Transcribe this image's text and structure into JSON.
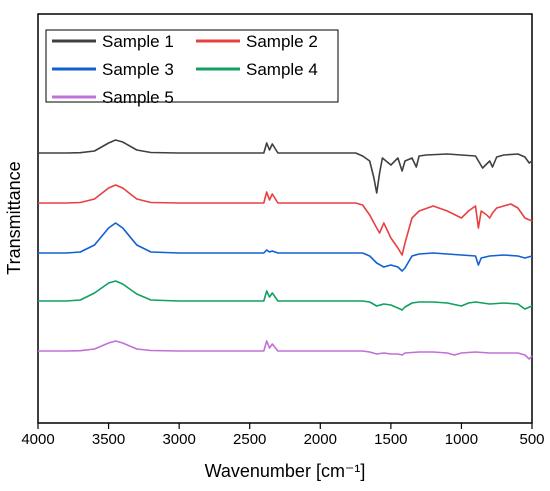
{
  "chart_data": {
    "type": "line",
    "title": "",
    "xlabel": "Wavenumber [cm⁻¹]",
    "ylabel": "Transmittance",
    "xlim": [
      4000,
      500
    ],
    "x_reversed": true,
    "x_ticks": [
      4000,
      3500,
      3000,
      2500,
      2000,
      1500,
      1000,
      500
    ],
    "y_ticks_shown": false,
    "grid": false,
    "legend_position": "top-left",
    "legend_columns": 2,
    "series": [
      {
        "name": "Sample 1",
        "color": "#404040",
        "baseline": 0,
        "points": [
          [
            4000,
            0
          ],
          [
            3800,
            0
          ],
          [
            3700,
            0.3
          ],
          [
            3600,
            2
          ],
          [
            3500,
            10
          ],
          [
            3450,
            13
          ],
          [
            3400,
            11
          ],
          [
            3300,
            3
          ],
          [
            3200,
            0.5
          ],
          [
            3000,
            0
          ],
          [
            2400,
            0
          ],
          [
            2380,
            10
          ],
          [
            2360,
            3
          ],
          [
            2340,
            9
          ],
          [
            2300,
            0
          ],
          [
            1750,
            0
          ],
          [
            1700,
            -3
          ],
          [
            1650,
            -8
          ],
          [
            1620,
            -25
          ],
          [
            1600,
            -40
          ],
          [
            1580,
            -20
          ],
          [
            1560,
            -5
          ],
          [
            1500,
            -12
          ],
          [
            1450,
            -5
          ],
          [
            1420,
            -18
          ],
          [
            1400,
            -8
          ],
          [
            1350,
            -5
          ],
          [
            1320,
            -14
          ],
          [
            1300,
            -3
          ],
          [
            1250,
            -2
          ],
          [
            1100,
            -1
          ],
          [
            1000,
            -2
          ],
          [
            900,
            -3
          ],
          [
            850,
            -15
          ],
          [
            800,
            -8
          ],
          [
            780,
            -14
          ],
          [
            750,
            -4
          ],
          [
            700,
            -2
          ],
          [
            600,
            -1
          ],
          [
            550,
            -4
          ],
          [
            520,
            -10
          ],
          [
            500,
            -8
          ]
        ]
      },
      {
        "name": "Sample 2",
        "color": "#e84040",
        "baseline": 0,
        "points": [
          [
            4000,
            0
          ],
          [
            3800,
            0
          ],
          [
            3700,
            0.5
          ],
          [
            3600,
            4
          ],
          [
            3500,
            15
          ],
          [
            3450,
            18
          ],
          [
            3400,
            15
          ],
          [
            3300,
            4
          ],
          [
            3200,
            0.5
          ],
          [
            3000,
            0
          ],
          [
            2400,
            0
          ],
          [
            2380,
            11
          ],
          [
            2360,
            3
          ],
          [
            2340,
            9
          ],
          [
            2300,
            0
          ],
          [
            1750,
            0
          ],
          [
            1700,
            -2
          ],
          [
            1650,
            -12
          ],
          [
            1600,
            -25
          ],
          [
            1580,
            -30
          ],
          [
            1550,
            -20
          ],
          [
            1500,
            -35
          ],
          [
            1450,
            -45
          ],
          [
            1420,
            -52
          ],
          [
            1400,
            -40
          ],
          [
            1350,
            -15
          ],
          [
            1300,
            -8
          ],
          [
            1200,
            -3
          ],
          [
            1100,
            -8
          ],
          [
            1000,
            -15
          ],
          [
            950,
            -8
          ],
          [
            900,
            -3
          ],
          [
            880,
            -25
          ],
          [
            860,
            -8
          ],
          [
            820,
            -12
          ],
          [
            800,
            -15
          ],
          [
            780,
            -10
          ],
          [
            750,
            -5
          ],
          [
            700,
            -3
          ],
          [
            650,
            -1
          ],
          [
            600,
            -5
          ],
          [
            550,
            -15
          ],
          [
            500,
            -18
          ]
        ]
      },
      {
        "name": "Sample 3",
        "color": "#1060d0",
        "baseline": 0,
        "points": [
          [
            4000,
            0
          ],
          [
            3800,
            0
          ],
          [
            3700,
            1
          ],
          [
            3600,
            8
          ],
          [
            3500,
            25
          ],
          [
            3450,
            30
          ],
          [
            3400,
            25
          ],
          [
            3300,
            8
          ],
          [
            3200,
            1
          ],
          [
            3000,
            0
          ],
          [
            2400,
            0
          ],
          [
            2380,
            3
          ],
          [
            2360,
            1
          ],
          [
            2340,
            2
          ],
          [
            2300,
            0
          ],
          [
            1700,
            0
          ],
          [
            1650,
            -3
          ],
          [
            1600,
            -10
          ],
          [
            1550,
            -14
          ],
          [
            1500,
            -12
          ],
          [
            1450,
            -14
          ],
          [
            1420,
            -18
          ],
          [
            1400,
            -15
          ],
          [
            1350,
            -3
          ],
          [
            1300,
            -1
          ],
          [
            1200,
            0
          ],
          [
            1100,
            -1
          ],
          [
            1000,
            -2
          ],
          [
            900,
            -3
          ],
          [
            880,
            -12
          ],
          [
            860,
            -5
          ],
          [
            800,
            -3
          ],
          [
            700,
            -2
          ],
          [
            600,
            -3
          ],
          [
            550,
            -5
          ],
          [
            500,
            -3
          ]
        ]
      },
      {
        "name": "Sample 4",
        "color": "#10a060",
        "baseline": 0,
        "points": [
          [
            4000,
            0
          ],
          [
            3800,
            0
          ],
          [
            3700,
            1
          ],
          [
            3600,
            8
          ],
          [
            3500,
            18
          ],
          [
            3450,
            20
          ],
          [
            3400,
            17
          ],
          [
            3300,
            7
          ],
          [
            3200,
            1
          ],
          [
            3000,
            0
          ],
          [
            2400,
            0
          ],
          [
            2380,
            10
          ],
          [
            2360,
            4
          ],
          [
            2340,
            8
          ],
          [
            2300,
            0
          ],
          [
            1700,
            0
          ],
          [
            1650,
            -1
          ],
          [
            1600,
            -5
          ],
          [
            1550,
            -3
          ],
          [
            1500,
            -4
          ],
          [
            1450,
            -7
          ],
          [
            1420,
            -9
          ],
          [
            1400,
            -6
          ],
          [
            1350,
            -2
          ],
          [
            1300,
            -1
          ],
          [
            1200,
            -1
          ],
          [
            1100,
            -2
          ],
          [
            1000,
            -5
          ],
          [
            950,
            -2
          ],
          [
            900,
            -1
          ],
          [
            850,
            -2
          ],
          [
            800,
            -3
          ],
          [
            700,
            -2
          ],
          [
            600,
            -3
          ],
          [
            550,
            -8
          ],
          [
            500,
            -5
          ]
        ]
      },
      {
        "name": "Sample 5",
        "color": "#c070d8",
        "baseline": 0,
        "points": [
          [
            4000,
            0
          ],
          [
            3800,
            0
          ],
          [
            3700,
            0.3
          ],
          [
            3600,
            2
          ],
          [
            3500,
            8
          ],
          [
            3450,
            10
          ],
          [
            3400,
            8
          ],
          [
            3300,
            2
          ],
          [
            3200,
            0.5
          ],
          [
            3000,
            0
          ],
          [
            2400,
            0
          ],
          [
            2380,
            10
          ],
          [
            2360,
            3
          ],
          [
            2340,
            7
          ],
          [
            2300,
            0
          ],
          [
            1700,
            0
          ],
          [
            1650,
            -1
          ],
          [
            1600,
            -3
          ],
          [
            1550,
            -2
          ],
          [
            1500,
            -3
          ],
          [
            1450,
            -3
          ],
          [
            1420,
            -4
          ],
          [
            1400,
            -2
          ],
          [
            1300,
            -1
          ],
          [
            1200,
            -1
          ],
          [
            1100,
            -2
          ],
          [
            1050,
            -4
          ],
          [
            1000,
            -2
          ],
          [
            900,
            -1
          ],
          [
            800,
            -2
          ],
          [
            700,
            -2
          ],
          [
            600,
            -2
          ],
          [
            550,
            -4
          ],
          [
            520,
            -8
          ],
          [
            500,
            -5
          ]
        ]
      }
    ]
  }
}
